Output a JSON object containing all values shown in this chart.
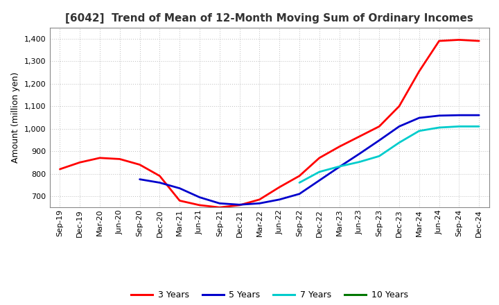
{
  "title": "[6042]  Trend of Mean of 12-Month Moving Sum of Ordinary Incomes",
  "ylabel": "Amount (million yen)",
  "ylim": [
    650,
    1450
  ],
  "yticks": [
    700,
    800,
    900,
    1000,
    1100,
    1200,
    1300,
    1400
  ],
  "background_color": "#ffffff",
  "grid_color": "#bbbbbb",
  "x_labels": [
    "Sep-19",
    "Dec-19",
    "Mar-20",
    "Jun-20",
    "Sep-20",
    "Dec-20",
    "Mar-21",
    "Jun-21",
    "Sep-21",
    "Dec-21",
    "Mar-22",
    "Jun-22",
    "Sep-22",
    "Dec-22",
    "Mar-23",
    "Jun-23",
    "Sep-23",
    "Dec-23",
    "Mar-24",
    "Jun-24",
    "Sep-24",
    "Dec-24"
  ],
  "series": [
    {
      "name": "3 Years",
      "color": "#ff0000",
      "data": [
        820,
        850,
        870,
        865,
        840,
        790,
        680,
        660,
        650,
        660,
        685,
        740,
        790,
        870,
        920,
        965,
        1010,
        1100,
        1255,
        1390,
        1395,
        1390
      ]
    },
    {
      "name": "5 Years",
      "color": "#0000cc",
      "data": [
        null,
        null,
        null,
        null,
        775,
        760,
        735,
        695,
        668,
        662,
        668,
        685,
        710,
        770,
        830,
        888,
        948,
        1010,
        1048,
        1058,
        1060,
        1060
      ]
    },
    {
      "name": "7 Years",
      "color": "#00cccc",
      "data": [
        null,
        null,
        null,
        null,
        null,
        null,
        null,
        null,
        null,
        null,
        null,
        null,
        760,
        808,
        832,
        852,
        878,
        938,
        990,
        1005,
        1010,
        1010
      ]
    },
    {
      "name": "10 Years",
      "color": "#007700",
      "data": [
        null,
        null,
        null,
        null,
        null,
        null,
        null,
        null,
        null,
        null,
        null,
        null,
        null,
        null,
        null,
        null,
        null,
        null,
        null,
        null,
        null,
        null
      ]
    }
  ],
  "legend_labels": [
    "3 Years",
    "5 Years",
    "7 Years",
    "10 Years"
  ],
  "legend_colors": [
    "#ff0000",
    "#0000cc",
    "#00cccc",
    "#007700"
  ],
  "title_fontsize": 11,
  "ylabel_fontsize": 9,
  "tick_fontsize": 8,
  "linewidth": 2.0
}
